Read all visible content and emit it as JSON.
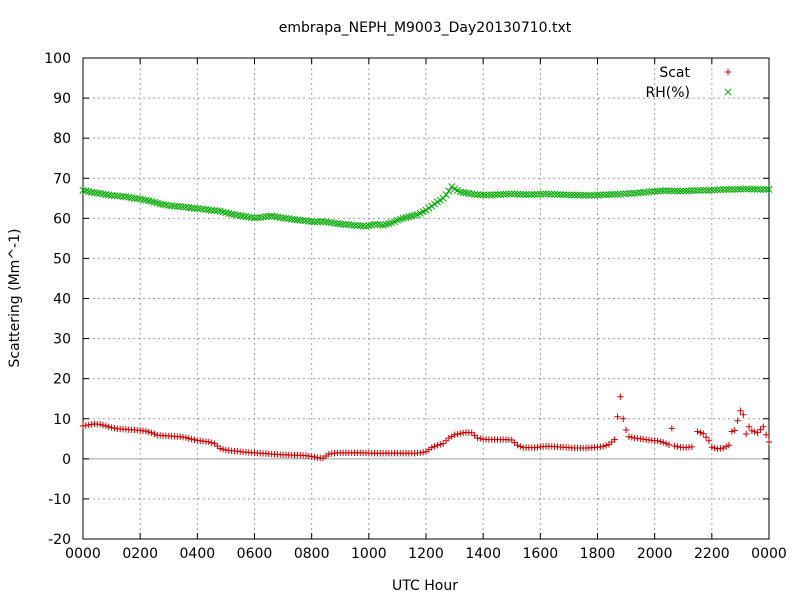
{
  "chart_data": {
    "type": "scatter",
    "title": "embrapa_NEPH_M9003_Day20130710.txt",
    "xlabel": "UTC Hour",
    "ylabel": "Scattering (Mm^-1)",
    "xlim": [
      0,
      24
    ],
    "ylim": [
      -20,
      100
    ],
    "x_ticks": [
      0,
      2,
      4,
      6,
      8,
      10,
      12,
      14,
      16,
      18,
      20,
      22,
      24
    ],
    "x_tick_labels": [
      "0000",
      "0200",
      "0400",
      "0600",
      "0800",
      "1000",
      "1200",
      "1400",
      "1600",
      "1800",
      "2000",
      "2200",
      "0000"
    ],
    "y_ticks": [
      -20,
      -10,
      0,
      10,
      20,
      30,
      40,
      50,
      60,
      70,
      80,
      90,
      100
    ],
    "y_tick_labels": [
      "-20",
      "-10",
      "0",
      "10",
      "20",
      "30",
      "40",
      "50",
      "60",
      "70",
      "80",
      "90",
      "100"
    ],
    "grid": true,
    "legend_position": "top-right",
    "series": [
      {
        "name": "Scat",
        "marker": "plus",
        "color": "#cc0000",
        "points": [
          [
            0.0,
            8.2
          ],
          [
            0.4,
            8.7
          ],
          [
            0.6,
            8.6
          ],
          [
            0.8,
            8.2
          ],
          [
            1.0,
            7.8
          ],
          [
            1.2,
            7.5
          ],
          [
            1.4,
            7.4
          ],
          [
            1.6,
            7.3
          ],
          [
            1.8,
            7.2
          ],
          [
            2.0,
            7.1
          ],
          [
            2.2,
            6.9
          ],
          [
            2.4,
            6.5
          ],
          [
            2.6,
            5.9
          ],
          [
            2.8,
            5.8
          ],
          [
            3.0,
            5.7
          ],
          [
            3.2,
            5.6
          ],
          [
            3.4,
            5.5
          ],
          [
            3.6,
            5.3
          ],
          [
            3.8,
            4.9
          ],
          [
            4.0,
            4.6
          ],
          [
            4.2,
            4.4
          ],
          [
            4.4,
            4.2
          ],
          [
            4.6,
            3.8
          ],
          [
            4.8,
            2.6
          ],
          [
            5.0,
            2.2
          ],
          [
            5.2,
            2.0
          ],
          [
            5.4,
            1.9
          ],
          [
            5.6,
            1.7
          ],
          [
            5.8,
            1.6
          ],
          [
            6.0,
            1.5
          ],
          [
            6.2,
            1.4
          ],
          [
            6.4,
            1.3
          ],
          [
            6.6,
            1.2
          ],
          [
            6.8,
            1.1
          ],
          [
            7.0,
            1.0
          ],
          [
            7.2,
            1.0
          ],
          [
            7.4,
            0.9
          ],
          [
            7.6,
            0.9
          ],
          [
            7.8,
            0.8
          ],
          [
            8.0,
            0.6
          ],
          [
            8.2,
            0.3
          ],
          [
            8.4,
            0.2
          ],
          [
            8.6,
            1.2
          ],
          [
            8.8,
            1.4
          ],
          [
            9.0,
            1.5
          ],
          [
            9.2,
            1.5
          ],
          [
            9.4,
            1.5
          ],
          [
            9.6,
            1.5
          ],
          [
            9.8,
            1.5
          ],
          [
            10.0,
            1.4
          ],
          [
            10.2,
            1.4
          ],
          [
            10.4,
            1.4
          ],
          [
            10.6,
            1.4
          ],
          [
            10.8,
            1.4
          ],
          [
            11.0,
            1.4
          ],
          [
            11.2,
            1.4
          ],
          [
            11.4,
            1.4
          ],
          [
            11.6,
            1.4
          ],
          [
            11.8,
            1.5
          ],
          [
            12.0,
            1.8
          ],
          [
            12.2,
            2.8
          ],
          [
            12.4,
            3.4
          ],
          [
            12.6,
            3.8
          ],
          [
            12.8,
            5.2
          ],
          [
            13.0,
            6.0
          ],
          [
            13.2,
            6.3
          ],
          [
            13.4,
            6.6
          ],
          [
            13.6,
            6.5
          ],
          [
            13.8,
            5.2
          ],
          [
            14.0,
            4.9
          ],
          [
            14.2,
            4.8
          ],
          [
            14.4,
            4.8
          ],
          [
            14.6,
            4.8
          ],
          [
            14.8,
            4.8
          ],
          [
            15.0,
            4.7
          ],
          [
            15.2,
            3.4
          ],
          [
            15.4,
            2.8
          ],
          [
            15.6,
            2.8
          ],
          [
            15.8,
            2.8
          ],
          [
            16.0,
            3.0
          ],
          [
            16.2,
            3.1
          ],
          [
            16.4,
            3.1
          ],
          [
            16.6,
            3.0
          ],
          [
            16.8,
            2.9
          ],
          [
            17.0,
            2.8
          ],
          [
            17.2,
            2.7
          ],
          [
            17.4,
            2.7
          ],
          [
            17.6,
            2.7
          ],
          [
            17.8,
            2.8
          ],
          [
            18.0,
            2.9
          ],
          [
            18.2,
            3.1
          ],
          [
            18.4,
            3.6
          ],
          [
            18.6,
            4.8
          ],
          [
            18.7,
            10.5
          ],
          [
            18.8,
            15.5
          ],
          [
            18.9,
            10.0
          ],
          [
            19.0,
            7.2
          ],
          [
            19.1,
            5.5
          ],
          [
            19.3,
            5.2
          ],
          [
            19.5,
            5.0
          ],
          [
            19.7,
            4.8
          ],
          [
            19.9,
            4.6
          ],
          [
            20.1,
            4.5
          ],
          [
            20.3,
            4.1
          ],
          [
            20.5,
            3.5
          ],
          [
            20.6,
            7.6
          ],
          [
            20.7,
            3.2
          ],
          [
            20.9,
            2.9
          ],
          [
            21.1,
            2.8
          ],
          [
            21.3,
            3.0
          ],
          [
            21.5,
            6.8
          ],
          [
            21.7,
            6.3
          ],
          [
            21.9,
            4.5
          ],
          [
            22.0,
            2.9
          ],
          [
            22.2,
            2.5
          ],
          [
            22.4,
            2.7
          ],
          [
            22.6,
            3.4
          ],
          [
            22.7,
            6.8
          ],
          [
            22.8,
            7.1
          ],
          [
            22.9,
            9.5
          ],
          [
            23.0,
            12.0
          ],
          [
            23.1,
            11.0
          ],
          [
            23.2,
            6.2
          ],
          [
            23.3,
            8.0
          ],
          [
            23.4,
            7.0
          ],
          [
            23.6,
            6.5
          ],
          [
            23.8,
            8.0
          ],
          [
            23.9,
            6.0
          ],
          [
            24.0,
            4.2
          ]
        ]
      },
      {
        "name": "RH(%)",
        "marker": "cross",
        "color": "#00aa00",
        "points": [
          [
            0.0,
            67.0
          ],
          [
            0.3,
            66.5
          ],
          [
            0.6,
            66.2
          ],
          [
            0.9,
            65.8
          ],
          [
            1.2,
            65.6
          ],
          [
            1.5,
            65.4
          ],
          [
            1.8,
            65.0
          ],
          [
            2.1,
            64.7
          ],
          [
            2.4,
            64.2
          ],
          [
            2.7,
            63.6
          ],
          [
            3.0,
            63.2
          ],
          [
            3.3,
            63.0
          ],
          [
            3.6,
            62.8
          ],
          [
            3.9,
            62.5
          ],
          [
            4.2,
            62.3
          ],
          [
            4.5,
            62.0
          ],
          [
            4.8,
            61.8
          ],
          [
            5.1,
            61.2
          ],
          [
            5.4,
            60.8
          ],
          [
            5.7,
            60.4
          ],
          [
            6.0,
            60.1
          ],
          [
            6.3,
            60.3
          ],
          [
            6.6,
            60.6
          ],
          [
            6.9,
            60.2
          ],
          [
            7.2,
            59.9
          ],
          [
            7.5,
            59.6
          ],
          [
            7.8,
            59.4
          ],
          [
            8.1,
            59.1
          ],
          [
            8.4,
            59.2
          ],
          [
            8.7,
            58.9
          ],
          [
            9.0,
            58.6
          ],
          [
            9.3,
            58.4
          ],
          [
            9.6,
            58.2
          ],
          [
            9.9,
            58.0
          ],
          [
            10.2,
            58.5
          ],
          [
            10.5,
            58.3
          ],
          [
            10.8,
            58.9
          ],
          [
            11.1,
            59.8
          ],
          [
            11.4,
            60.4
          ],
          [
            11.7,
            60.9
          ],
          [
            12.0,
            62.0
          ],
          [
            12.3,
            63.6
          ],
          [
            12.6,
            65.0
          ],
          [
            12.8,
            66.8
          ],
          [
            12.9,
            67.9
          ],
          [
            13.0,
            67.3
          ],
          [
            13.2,
            66.6
          ],
          [
            13.5,
            66.2
          ],
          [
            13.8,
            65.9
          ],
          [
            14.1,
            65.8
          ],
          [
            14.4,
            65.9
          ],
          [
            14.7,
            66.0
          ],
          [
            15.0,
            66.1
          ],
          [
            15.3,
            66.0
          ],
          [
            15.6,
            65.9
          ],
          [
            15.9,
            66.0
          ],
          [
            16.2,
            66.1
          ],
          [
            16.5,
            66.0
          ],
          [
            16.8,
            65.9
          ],
          [
            17.1,
            65.8
          ],
          [
            17.4,
            65.8
          ],
          [
            17.7,
            65.7
          ],
          [
            18.0,
            65.8
          ],
          [
            18.3,
            65.9
          ],
          [
            18.6,
            66.0
          ],
          [
            18.9,
            66.1
          ],
          [
            19.2,
            66.2
          ],
          [
            19.5,
            66.4
          ],
          [
            19.8,
            66.6
          ],
          [
            20.1,
            66.8
          ],
          [
            20.4,
            66.9
          ],
          [
            20.7,
            66.8
          ],
          [
            21.0,
            66.8
          ],
          [
            21.3,
            66.9
          ],
          [
            21.6,
            67.0
          ],
          [
            21.9,
            67.0
          ],
          [
            22.2,
            67.1
          ],
          [
            22.5,
            67.2
          ],
          [
            22.8,
            67.2
          ],
          [
            23.1,
            67.3
          ],
          [
            23.4,
            67.3
          ],
          [
            23.7,
            67.2
          ],
          [
            24.0,
            67.2
          ]
        ]
      }
    ]
  }
}
